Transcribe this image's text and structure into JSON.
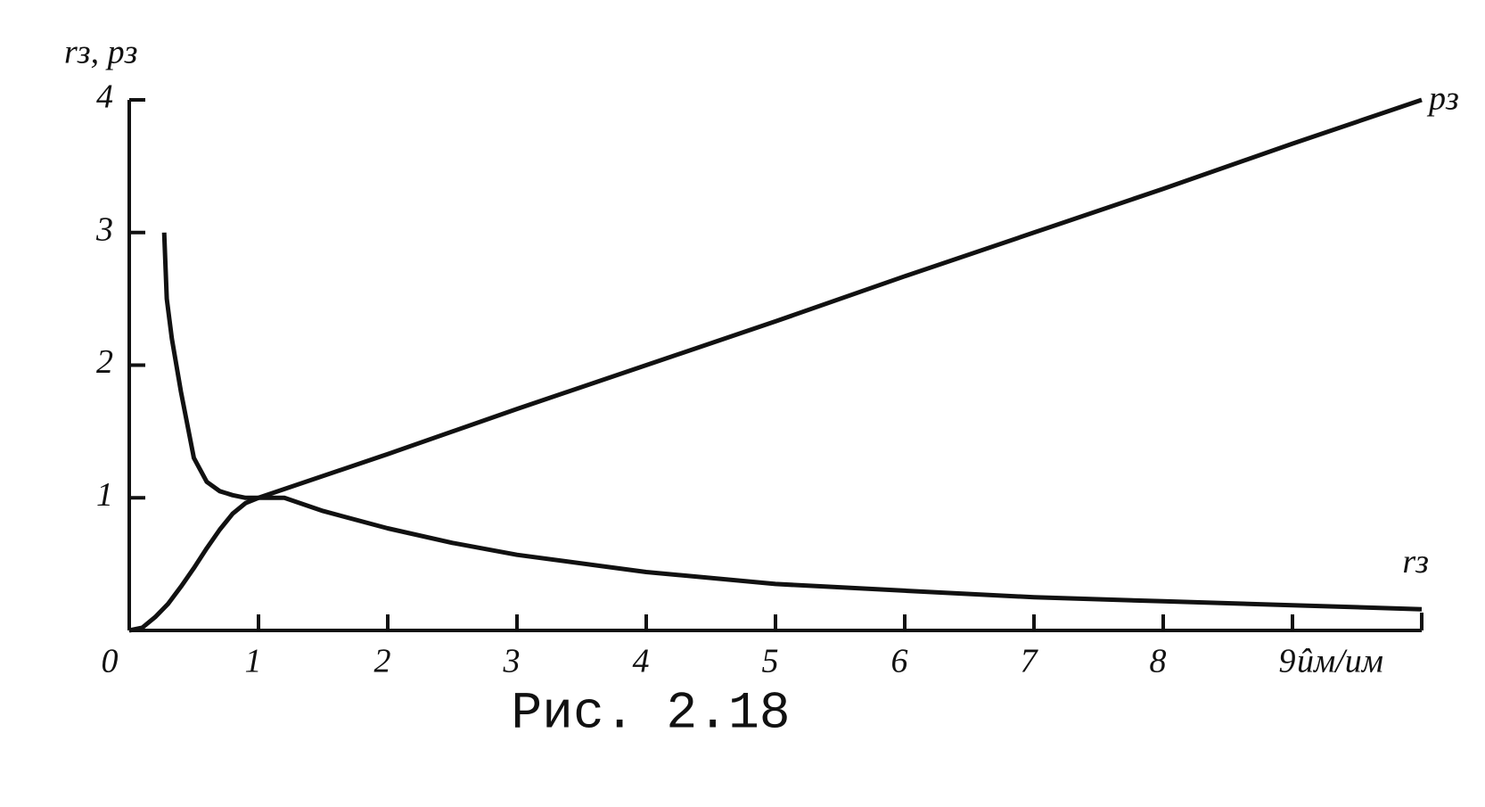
{
  "chart_data": {
    "type": "line",
    "caption": "Рис. 2.18",
    "y_label": "rз, pз",
    "x_label": "ûм/uм",
    "xlim": [
      0,
      10
    ],
    "ylim": [
      0,
      4
    ],
    "xticks": [
      0,
      1,
      2,
      3,
      4,
      5,
      6,
      7,
      8,
      9
    ],
    "yticks": [
      1,
      2,
      3,
      4
    ],
    "series": [
      {
        "name": "pз",
        "color": "#111111",
        "x": [
          0,
          0.1,
          0.2,
          0.3,
          0.4,
          0.5,
          0.6,
          0.7,
          0.8,
          0.9,
          1,
          2,
          3,
          4,
          5,
          6,
          7,
          8,
          9,
          10
        ],
        "values": [
          0,
          0.02,
          0.1,
          0.2,
          0.33,
          0.47,
          0.62,
          0.76,
          0.88,
          0.96,
          1,
          1.33,
          1.67,
          2,
          2.33,
          2.67,
          3,
          3.33,
          3.67,
          4
        ]
      },
      {
        "name": "rз",
        "color": "#111111",
        "x": [
          0.27,
          0.29,
          0.33,
          0.4,
          0.5,
          0.6,
          0.7,
          0.8,
          0.9,
          1,
          1.2,
          1.5,
          2,
          2.5,
          3,
          4,
          5,
          6,
          7,
          8,
          9,
          10
        ],
        "values": [
          3,
          2.5,
          2.2,
          1.8,
          1.3,
          1.12,
          1.05,
          1.02,
          1.0,
          1.0,
          1.0,
          0.9,
          0.77,
          0.66,
          0.57,
          0.44,
          0.35,
          0.3,
          0.25,
          0.22,
          0.19,
          0.16
        ]
      }
    ]
  }
}
